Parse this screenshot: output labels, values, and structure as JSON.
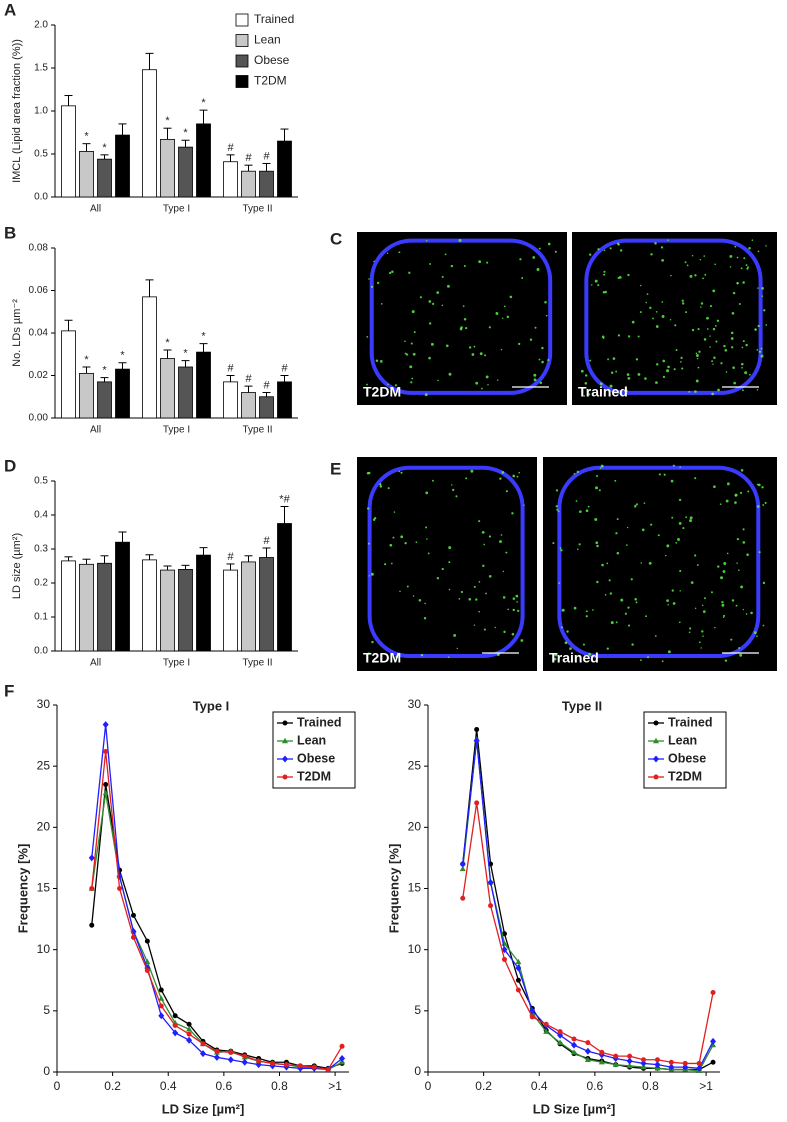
{
  "chart_data": [
    {
      "panel": "A",
      "type": "bar",
      "y_label": "IMCL (Lipid area fraction (%))",
      "categories": [
        "All",
        "Type I",
        "Type II"
      ],
      "series": [
        {
          "name": "Trained",
          "color": "#ffffff",
          "values": [
            1.06,
            1.48,
            0.41
          ],
          "errors": [
            0.12,
            0.19,
            0.08
          ],
          "annotations": [
            null,
            null,
            "#"
          ]
        },
        {
          "name": "Lean",
          "color": "#c8c8c8",
          "values": [
            0.53,
            0.67,
            0.3
          ],
          "errors": [
            0.09,
            0.13,
            0.07
          ],
          "annotations": [
            "*",
            "*",
            "#"
          ]
        },
        {
          "name": "Obese",
          "color": "#555555",
          "values": [
            0.44,
            0.58,
            0.3
          ],
          "errors": [
            0.05,
            0.08,
            0.09
          ],
          "annotations": [
            "*",
            "*",
            "#"
          ]
        },
        {
          "name": "T2DM",
          "color": "#000000",
          "values": [
            0.72,
            0.85,
            0.65
          ],
          "errors": [
            0.13,
            0.16,
            0.14
          ],
          "annotations": [
            null,
            "*",
            null
          ]
        }
      ],
      "ylim": [
        0,
        2
      ],
      "yticks": [
        {
          "value": 0,
          "label": "0.0"
        },
        0.5,
        {
          "value": 1,
          "label": "1.0"
        },
        1.5,
        {
          "value": 2,
          "label": "2.0"
        }
      ],
      "legend": "upper center"
    },
    {
      "panel": "B",
      "type": "bar",
      "y_label": "No. LDs µm⁻²",
      "categories": [
        "All",
        "Type I",
        "Type II"
      ],
      "series": [
        {
          "name": "Trained",
          "color": "#ffffff",
          "values": [
            0.041,
            0.057,
            0.017
          ],
          "errors": [
            0.005,
            0.008,
            0.003
          ],
          "annotations": [
            null,
            null,
            "#"
          ]
        },
        {
          "name": "Lean",
          "color": "#c8c8c8",
          "values": [
            0.021,
            0.028,
            0.012
          ],
          "errors": [
            0.003,
            0.004,
            0.003
          ],
          "annotations": [
            "*",
            "*",
            "#"
          ]
        },
        {
          "name": "Obese",
          "color": "#555555",
          "values": [
            0.017,
            0.024,
            0.01
          ],
          "errors": [
            0.002,
            0.003,
            0.002
          ],
          "annotations": [
            "*",
            "*",
            "#"
          ]
        },
        {
          "name": "T2DM",
          "color": "#000000",
          "values": [
            0.023,
            0.031,
            0.017
          ],
          "errors": [
            0.003,
            0.004,
            0.003
          ],
          "annotations": [
            "*",
            "*",
            "#"
          ]
        }
      ],
      "ylim": [
        0,
        0.08
      ],
      "yticks": [
        {
          "value": 0,
          "label": "0.00"
        },
        0.02,
        0.04,
        0.06,
        0.08
      ]
    },
    {
      "panel": "D",
      "type": "bar",
      "y_label": "LD size (µm²)",
      "categories": [
        "All",
        "Type I",
        "Type II"
      ],
      "series": [
        {
          "name": "Trained",
          "color": "#ffffff",
          "values": [
            0.265,
            0.268,
            0.238
          ],
          "errors": [
            0.012,
            0.015,
            0.018
          ],
          "annotations": [
            null,
            null,
            "#"
          ]
        },
        {
          "name": "Lean",
          "color": "#c8c8c8",
          "values": [
            0.255,
            0.238,
            0.262
          ],
          "errors": [
            0.015,
            0.012,
            0.018
          ],
          "annotations": [
            null,
            null,
            null
          ]
        },
        {
          "name": "Obese",
          "color": "#555555",
          "values": [
            0.258,
            0.24,
            0.275
          ],
          "errors": [
            0.022,
            0.012,
            0.028
          ],
          "annotations": [
            null,
            null,
            "#"
          ]
        },
        {
          "name": "T2DM",
          "color": "#000000",
          "values": [
            0.32,
            0.282,
            0.375
          ],
          "errors": [
            0.03,
            0.022,
            0.05
          ],
          "annotations": [
            null,
            null,
            "*#"
          ]
        }
      ],
      "ylim": [
        0,
        0.5
      ],
      "yticks": [
        {
          "value": 0,
          "label": "0.0"
        },
        0.1,
        0.2,
        0.3,
        0.4,
        0.5
      ]
    },
    {
      "panel": "F",
      "type": "line",
      "title": "Type I",
      "x_label": "LD Size [µm²]",
      "y_label": "Frequency [%]",
      "x": [
        0.125,
        0.175,
        0.225,
        0.275,
        0.325,
        0.375,
        0.425,
        0.475,
        0.525,
        0.575,
        0.625,
        0.675,
        0.725,
        0.775,
        0.825,
        0.875,
        0.925,
        0.975,
        1.025
      ],
      "series": [
        {
          "name": "Trained",
          "color": "#000000",
          "marker": "circle",
          "values": [
            12,
            23.5,
            16.5,
            12.8,
            10.7,
            6.7,
            4.6,
            3.9,
            2.5,
            1.8,
            1.7,
            1.4,
            1.1,
            0.8,
            0.8,
            0.5,
            0.5,
            0.3,
            0.7
          ]
        },
        {
          "name": "Lean",
          "color": "#2e8b2e",
          "marker": "triangle",
          "values": [
            15,
            22.8,
            16,
            11.5,
            9,
            6,
            4,
            3.5,
            2.3,
            1.6,
            1.7,
            1.2,
            0.9,
            0.7,
            0.6,
            0.4,
            0.4,
            0.2,
            0.8
          ]
        },
        {
          "name": "Obese",
          "color": "#1f1fff",
          "marker": "diamond",
          "values": [
            17.5,
            28.4,
            16,
            11.5,
            8.5,
            4.6,
            3.2,
            2.6,
            1.5,
            1.2,
            1.0,
            0.8,
            0.6,
            0.5,
            0.4,
            0.3,
            0.3,
            0.2,
            1.1
          ]
        },
        {
          "name": "T2DM",
          "color": "#e02020",
          "marker": "circle",
          "values": [
            15,
            26.2,
            15,
            11,
            8.3,
            5.4,
            3.8,
            3.1,
            2.3,
            1.7,
            1.6,
            1.3,
            0.9,
            0.7,
            0.6,
            0.5,
            0.4,
            0.2,
            2.1
          ]
        }
      ],
      "xlim": [
        0,
        1.05
      ],
      "xticks": [
        0,
        0.2,
        0.4,
        0.6,
        0.8,
        {
          "value": 1,
          "label": ">1"
        }
      ],
      "ylim": [
        0,
        30
      ],
      "yticks": [
        0,
        5,
        10,
        15,
        20,
        25,
        30
      ],
      "legend": "upper right"
    },
    {
      "type": "line",
      "title": "Type II",
      "x_label": "LD Size [µm²]",
      "y_label": "Frequency [%]",
      "x": [
        0.125,
        0.175,
        0.225,
        0.275,
        0.325,
        0.375,
        0.425,
        0.475,
        0.525,
        0.575,
        0.625,
        0.675,
        0.725,
        0.775,
        0.825,
        0.875,
        0.925,
        0.975,
        1.025
      ],
      "series": [
        {
          "name": "Trained",
          "color": "#000000",
          "marker": "circle",
          "values": [
            17,
            28,
            17,
            11.3,
            7.5,
            5.2,
            3.4,
            2.3,
            1.5,
            1.1,
            0.9,
            0.6,
            0.4,
            0.3,
            0.3,
            0.2,
            0.2,
            0.2,
            0.8
          ]
        },
        {
          "name": "Lean",
          "color": "#2e8b2e",
          "marker": "triangle",
          "values": [
            16.6,
            27.2,
            15.5,
            10.5,
            9,
            4.8,
            3.3,
            2.4,
            1.6,
            1.0,
            0.8,
            0.6,
            0.5,
            0.4,
            0.3,
            0.2,
            0.2,
            0.1,
            2.2
          ]
        },
        {
          "name": "Obese",
          "color": "#1f1fff",
          "marker": "diamond",
          "values": [
            17,
            27.1,
            15.5,
            10,
            8.5,
            5,
            3.8,
            3,
            2.2,
            1.7,
            1.4,
            1.1,
            0.9,
            0.7,
            0.6,
            0.4,
            0.4,
            0.3,
            2.5
          ]
        },
        {
          "name": "T2DM",
          "color": "#e02020",
          "marker": "circle",
          "values": [
            14.2,
            22,
            13.6,
            9.2,
            6.7,
            4.5,
            3.9,
            3.3,
            2.7,
            2.4,
            1.6,
            1.3,
            1.3,
            1.0,
            1.0,
            0.8,
            0.7,
            0.7,
            6.5
          ]
        }
      ],
      "xlim": [
        0,
        1.05
      ],
      "xticks": [
        0,
        0.2,
        0.4,
        0.6,
        0.8,
        {
          "value": 1,
          "label": ">1"
        }
      ],
      "ylim": [
        0,
        30
      ],
      "yticks": [
        0,
        5,
        10,
        15,
        20,
        25,
        30
      ],
      "legend": "upper right"
    }
  ],
  "images": [
    {
      "panel": "C",
      "labels": [
        "T2DM",
        "Trained"
      ]
    },
    {
      "panel": "E",
      "labels": [
        "T2DM",
        "Trained"
      ]
    }
  ]
}
